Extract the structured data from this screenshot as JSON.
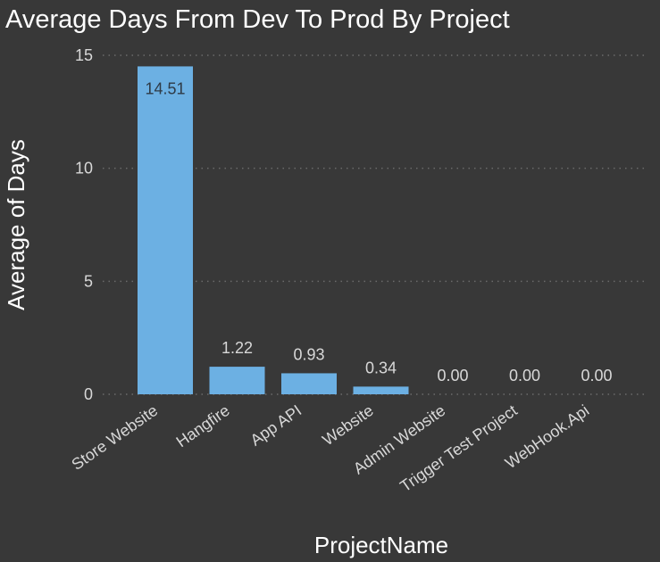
{
  "chart_data": {
    "type": "bar",
    "title": "Average Days From Dev To Prod By Project",
    "xlabel": "ProjectName",
    "ylabel": "Average of Days",
    "categories": [
      "Store Website",
      "Hangfire",
      "App API",
      "Website",
      "Admin Website",
      "Trigger Test Project",
      "WebHook.Api"
    ],
    "values": [
      14.51,
      1.22,
      0.93,
      0.34,
      0.0,
      0.0,
      0.0
    ],
    "data_labels": [
      "14.51",
      "1.22",
      "0.93",
      "0.34",
      "0.00",
      "0.00",
      "0.00"
    ],
    "yticks": [
      0,
      5,
      10,
      15
    ],
    "ylim": [
      0,
      15
    ],
    "grid": true,
    "colors": {
      "background": "#383838",
      "bar": "#6cb0e3",
      "gridline": "#6a6a6a",
      "text": "#ffffff",
      "tick_text": "#d8d8d8",
      "label_inside": "#2e3a46"
    }
  }
}
